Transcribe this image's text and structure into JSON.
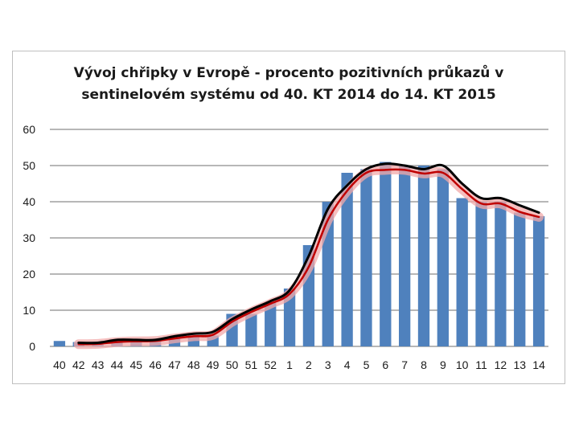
{
  "chart_data": {
    "type": "bar",
    "title_lines": [
      "Vývoj chřipky v Evropě - procento pozitivních průkazů v",
      "sentinelovém systému od 40. KT 2014 do 14. KT 2015"
    ],
    "categories": [
      "40",
      "42",
      "43",
      "44",
      "45",
      "46",
      "47",
      "48",
      "49",
      "50",
      "51",
      "52",
      "1",
      "2",
      "3",
      "4",
      "5",
      "6",
      "7",
      "8",
      "9",
      "10",
      "11",
      "12",
      "13",
      "14"
    ],
    "series": [
      {
        "values": [
          1.5,
          1.2,
          1.3,
          1.8,
          1.6,
          1.6,
          2.5,
          3,
          3,
          9,
          9,
          12,
          16,
          28,
          40,
          48,
          49,
          51,
          50,
          50,
          49,
          41,
          40,
          40,
          37,
          36
        ]
      },
      {
        "values": [
          null,
          1,
          1,
          1.8,
          1.8,
          1.8,
          2.8,
          3.5,
          4,
          7.5,
          10.2,
          12.5,
          15.5,
          25,
          38,
          44.5,
          49,
          50.5,
          50,
          49,
          50,
          45,
          41,
          41,
          39,
          37
        ]
      },
      {
        "values": [
          null,
          0.6,
          0.7,
          1.2,
          1.4,
          1.5,
          2.2,
          2.8,
          3.2,
          6.8,
          9.5,
          11.8,
          14.5,
          22,
          35,
          43,
          48,
          48.8,
          48.8,
          47.8,
          48,
          43.5,
          39.5,
          39.5,
          37.2,
          35.8
        ]
      }
    ],
    "ylim": [
      0,
      60
    ],
    "yticks": [
      0,
      10,
      20,
      30,
      40,
      50,
      60
    ],
    "grid": true,
    "colors": {
      "bar": "#4f81bd",
      "line_black": "#000000",
      "line_red": "#c00000",
      "glow": "#f2aaaa",
      "grid": "#8c8c8c"
    }
  }
}
